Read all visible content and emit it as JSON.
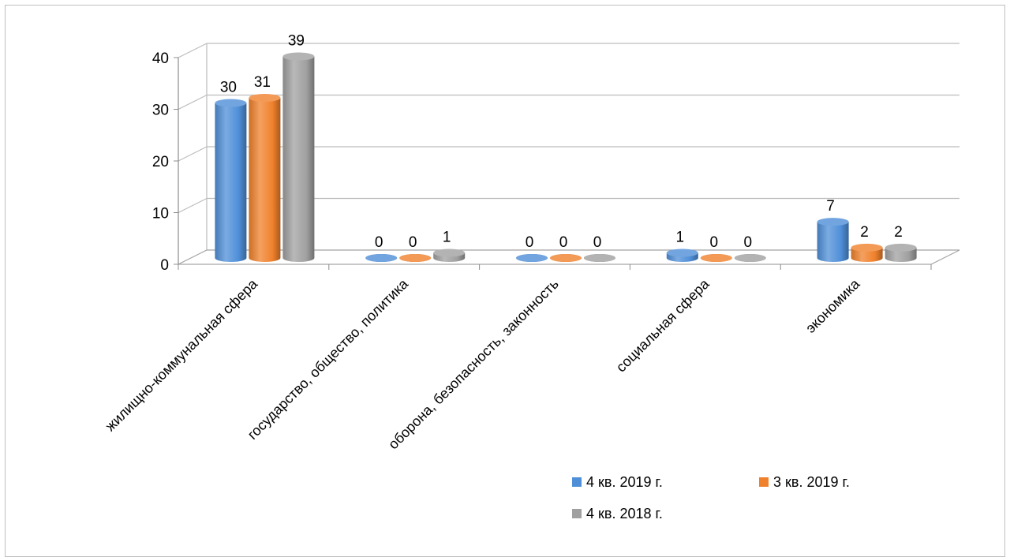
{
  "chart_data": {
    "type": "bar",
    "title": "",
    "xlabel": "",
    "ylabel": "",
    "ylim": [
      0,
      40
    ],
    "yticks": [
      "0",
      "10",
      "20",
      "30",
      "40"
    ],
    "grid": true,
    "legend_position": "bottom-right",
    "categories": [
      "жилищно-коммунальная сфера",
      "государство, общество, политика",
      "оборона, безопасность, законность",
      "социальная сфера",
      "экономика"
    ],
    "series": [
      {
        "name": "4 кв. 2019 г.",
        "color": "#4f8fd8",
        "values": [
          30,
          0,
          0,
          1,
          7
        ],
        "labels": [
          "30",
          "0",
          "0",
          "1",
          "7"
        ]
      },
      {
        "name": "3 кв. 2019 г.",
        "color": "#f0812c",
        "values": [
          31,
          0,
          0,
          0,
          2
        ],
        "labels": [
          "31",
          "0",
          "0",
          "0",
          "2"
        ]
      },
      {
        "name": "4 кв. 2018 г.",
        "color": "#a0a0a0",
        "values": [
          39,
          1,
          0,
          0,
          2
        ],
        "labels": [
          "39",
          "1",
          "0",
          "0",
          "2"
        ]
      }
    ]
  }
}
